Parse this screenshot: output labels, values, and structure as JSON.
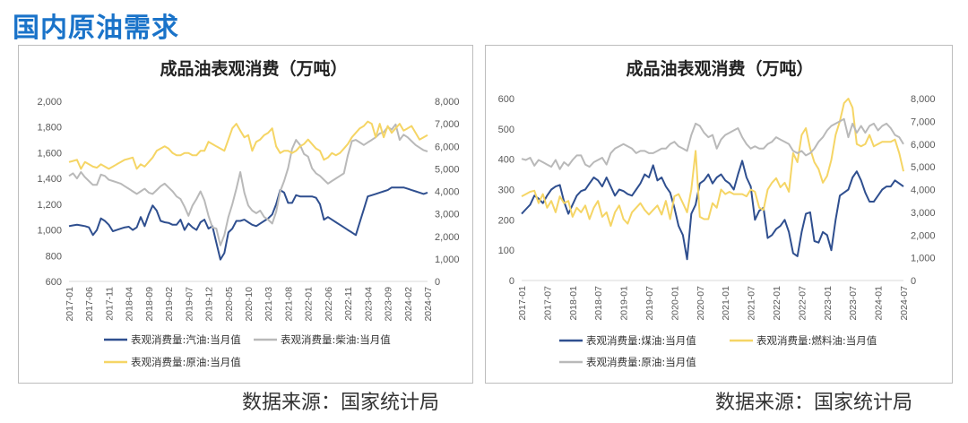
{
  "header": {
    "title": "国内原油需求"
  },
  "footer": {
    "left_source": "数据来源：国家统计局",
    "right_source": "数据来源：国家统计局"
  },
  "colors": {
    "blue": "#2f4f8f",
    "grey": "#b9b9b9",
    "yellow": "#f5d565",
    "axis": "#d9d9d9",
    "text": "#595959"
  },
  "chart_data": [
    {
      "type": "line",
      "title": "成品油表观消费（万吨）",
      "x": [
        "2017-01",
        "2017-02",
        "2017-03",
        "2017-04",
        "2017-05",
        "2017-06",
        "2017-07",
        "2017-08",
        "2017-09",
        "2017-10",
        "2017-11",
        "2017-12",
        "2018-01",
        "2018-02",
        "2018-03",
        "2018-04",
        "2018-05",
        "2018-06",
        "2018-07",
        "2018-08",
        "2018-09",
        "2018-10",
        "2018-11",
        "2018-12",
        "2019-01",
        "2019-02",
        "2019-03",
        "2019-04",
        "2019-05",
        "2019-06",
        "2019-07",
        "2019-08",
        "2019-09",
        "2019-10",
        "2019-11",
        "2019-12",
        "2020-01",
        "2020-02",
        "2020-03",
        "2020-04",
        "2020-05",
        "2020-06",
        "2020-07",
        "2020-08",
        "2020-09",
        "2020-10",
        "2020-11",
        "2020-12",
        "2021-01",
        "2021-02",
        "2021-03",
        "2021-04",
        "2021-05",
        "2021-06",
        "2021-07",
        "2021-08",
        "2021-09",
        "2021-10",
        "2021-11",
        "2021-12",
        "2022-01",
        "2022-02",
        "2022-03",
        "2022-04",
        "2022-05",
        "2022-06",
        "2022-07",
        "2022-08",
        "2022-09",
        "2022-10",
        "2022-11",
        "2022-12",
        "2023-01",
        "2023-02",
        "2023-03",
        "2023-04",
        "2023-05",
        "2023-06",
        "2023-07",
        "2023-08",
        "2023-09",
        "2023-10",
        "2023-11",
        "2023-12",
        "2024-01",
        "2024-02",
        "2024-03",
        "2024-04",
        "2024-05",
        "2024-06",
        "2024-07"
      ],
      "x_tick_labels": [
        "2017-01",
        "2017-06",
        "2017-11",
        "2018-04",
        "2018-09",
        "2019-02",
        "2019-07",
        "2019-12",
        "2020-05",
        "2020-10",
        "2021-03",
        "2021-08",
        "2022-01",
        "2022-06",
        "2022-11",
        "2023-04",
        "2023-09",
        "2024-02",
        "2024-07"
      ],
      "y_left": {
        "min": 600,
        "max": 2000,
        "ticks": [
          "600",
          "800",
          "1,000",
          "1,200",
          "1,400",
          "1,600",
          "1,800",
          "2,000"
        ]
      },
      "y_right": {
        "min": 0,
        "max": 8000,
        "ticks": [
          "0",
          "1,000",
          "2,000",
          "3,000",
          "4,000",
          "5,000",
          "6,000",
          "7,000",
          "8,000"
        ]
      },
      "series": [
        {
          "name": "表观消费量:汽油:当月值",
          "color": "#2f4f8f",
          "axis": "left",
          "values": [
            1030,
            1035,
            1040,
            1035,
            1030,
            1020,
            960,
            1000,
            1090,
            1070,
            1040,
            990,
            1000,
            1010,
            1020,
            1025,
            1000,
            1020,
            1100,
            1030,
            1120,
            1190,
            1150,
            1070,
            1060,
            1055,
            1040,
            1040,
            1080,
            1000,
            1050,
            1020,
            1000,
            1060,
            1080,
            1010,
            1030,
            900,
            770,
            820,
            980,
            1010,
            1070,
            1070,
            1080,
            1060,
            1040,
            1030,
            1050,
            1070,
            1090,
            1120,
            1200,
            1310,
            1290,
            1210,
            1210,
            1270,
            1260,
            1260,
            1260,
            1260,
            1250,
            1200,
            1080,
            1100,
            1080,
            1060,
            1040,
            1020,
            1000,
            980,
            960,
            1060,
            1160,
            1260,
            1270,
            1280,
            1290,
            1300,
            1310,
            1330,
            1330,
            1330,
            1330,
            1320,
            1310,
            1300,
            1290,
            1280,
            1290
          ]
        },
        {
          "name": "表观消费量:柴油:当月值",
          "color": "#b9b9b9",
          "axis": "left",
          "values": [
            1420,
            1440,
            1400,
            1450,
            1410,
            1380,
            1350,
            1350,
            1430,
            1420,
            1390,
            1380,
            1370,
            1360,
            1340,
            1320,
            1300,
            1280,
            1300,
            1320,
            1290,
            1280,
            1310,
            1340,
            1360,
            1330,
            1300,
            1260,
            1240,
            1180,
            1110,
            1190,
            1240,
            1300,
            1230,
            1110,
            1020,
            1010,
            880,
            960,
            1100,
            1200,
            1320,
            1450,
            1290,
            1190,
            1150,
            1130,
            1150,
            1100,
            1080,
            1050,
            1140,
            1300,
            1380,
            1480,
            1630,
            1700,
            1660,
            1590,
            1570,
            1480,
            1440,
            1420,
            1390,
            1360,
            1380,
            1400,
            1420,
            1440,
            1580,
            1690,
            1700,
            1680,
            1660,
            1680,
            1700,
            1720,
            1750,
            1760,
            1800,
            1780,
            1820,
            1700,
            1740,
            1720,
            1690,
            1660,
            1640,
            1620,
            1610
          ]
        },
        {
          "name": "表观消费量:原油:当月值",
          "color": "#f5d565",
          "axis": "right",
          "values": [
            5300,
            5350,
            5400,
            5000,
            5300,
            5200,
            5100,
            5050,
            5200,
            5100,
            5000,
            5100,
            5200,
            5300,
            5400,
            5450,
            5500,
            5000,
            5200,
            5100,
            5300,
            5500,
            5800,
            5900,
            6000,
            5900,
            5700,
            5600,
            5600,
            5700,
            5700,
            5600,
            5600,
            5800,
            5800,
            6200,
            6100,
            6000,
            5900,
            5800,
            6300,
            6800,
            7000,
            6700,
            6400,
            6500,
            5800,
            6200,
            6300,
            6500,
            6600,
            6800,
            6000,
            5700,
            5800,
            5800,
            5700,
            5800,
            6000,
            6100,
            6300,
            6100,
            5900,
            5800,
            5400,
            5500,
            5700,
            5600,
            5700,
            5900,
            6100,
            6400,
            6600,
            6800,
            6900,
            7100,
            7000,
            6400,
            7000,
            6400,
            6900,
            6600,
            6800,
            7000,
            6700,
            6800,
            6900,
            6600,
            6300,
            6400,
            6500
          ]
        }
      ]
    },
    {
      "type": "line",
      "title": "成品油表观消费（万吨）",
      "x": [
        "2017-01",
        "2017-02",
        "2017-03",
        "2017-04",
        "2017-05",
        "2017-06",
        "2017-07",
        "2017-08",
        "2017-09",
        "2017-10",
        "2017-11",
        "2017-12",
        "2018-01",
        "2018-02",
        "2018-03",
        "2018-04",
        "2018-05",
        "2018-06",
        "2018-07",
        "2018-08",
        "2018-09",
        "2018-10",
        "2018-11",
        "2018-12",
        "2019-01",
        "2019-02",
        "2019-03",
        "2019-04",
        "2019-05",
        "2019-06",
        "2019-07",
        "2019-08",
        "2019-09",
        "2019-10",
        "2019-11",
        "2019-12",
        "2020-01",
        "2020-02",
        "2020-03",
        "2020-04",
        "2020-05",
        "2020-06",
        "2020-07",
        "2020-08",
        "2020-09",
        "2020-10",
        "2020-11",
        "2020-12",
        "2021-01",
        "2021-02",
        "2021-03",
        "2021-04",
        "2021-05",
        "2021-06",
        "2021-07",
        "2021-08",
        "2021-09",
        "2021-10",
        "2021-11",
        "2021-12",
        "2022-01",
        "2022-02",
        "2022-03",
        "2022-04",
        "2022-05",
        "2022-06",
        "2022-07",
        "2022-08",
        "2022-09",
        "2022-10",
        "2022-11",
        "2022-12",
        "2023-01",
        "2023-02",
        "2023-03",
        "2023-04",
        "2023-05",
        "2023-06",
        "2023-07",
        "2023-08",
        "2023-09",
        "2023-10",
        "2023-11",
        "2023-12",
        "2024-01",
        "2024-02",
        "2024-03",
        "2024-04",
        "2024-05",
        "2024-06",
        "2024-07"
      ],
      "x_tick_labels": [
        "2017-01",
        "2017-07",
        "2018-01",
        "2018-07",
        "2019-01",
        "2019-07",
        "2020-01",
        "2020-07",
        "2021-01",
        "2021-07",
        "2022-01",
        "2022-07",
        "2023-01",
        "2023-07",
        "2024-01",
        "2024-07"
      ],
      "y_left": {
        "min": 0,
        "max": 600,
        "ticks": [
          "0",
          "100",
          "200",
          "300",
          "400",
          "500",
          "600"
        ]
      },
      "y_right": {
        "min": 0,
        "max": 8000,
        "ticks": [
          "0",
          "1,000",
          "2,000",
          "3,000",
          "4,000",
          "5,000",
          "6,000",
          "7,000",
          "8,000"
        ]
      },
      "series": [
        {
          "name": "表观消费量:煤油:当月值",
          "color": "#2f4f8f",
          "axis": "left",
          "values": [
            220,
            235,
            250,
            280,
            270,
            255,
            280,
            300,
            310,
            315,
            260,
            220,
            250,
            280,
            295,
            300,
            320,
            340,
            330,
            310,
            340,
            310,
            280,
            300,
            295,
            285,
            280,
            300,
            320,
            350,
            340,
            380,
            330,
            340,
            310,
            290,
            240,
            180,
            150,
            70,
            220,
            250,
            320,
            330,
            350,
            320,
            340,
            350,
            330,
            320,
            300,
            350,
            395,
            340,
            310,
            200,
            230,
            240,
            140,
            150,
            170,
            180,
            200,
            160,
            90,
            80,
            160,
            220,
            225,
            130,
            125,
            160,
            150,
            100,
            200,
            280,
            290,
            300,
            340,
            360,
            330,
            290,
            260,
            260,
            280,
            300,
            310,
            310,
            330,
            320,
            310
          ]
        },
        {
          "name": "表观消费量:燃料油:当月值",
          "color": "#f5d565",
          "axis": "right",
          "values": [
            3700,
            3800,
            3900,
            3950,
            3400,
            3800,
            3200,
            3500,
            3000,
            3700,
            3400,
            3500,
            2800,
            3200,
            3000,
            3300,
            2700,
            3200,
            3500,
            2800,
            3000,
            2400,
            3000,
            3300,
            2700,
            2500,
            3000,
            3200,
            3400,
            3100,
            2900,
            3100,
            3300,
            2900,
            3500,
            2700,
            3700,
            3800,
            3400,
            3000,
            4000,
            5700,
            2800,
            2700,
            2700,
            3400,
            3200,
            4000,
            3800,
            3900,
            3800,
            3800,
            3800,
            3700,
            4000,
            3900,
            3200,
            3100,
            4000,
            4300,
            4500,
            4100,
            4300,
            3900,
            5600,
            5200,
            6400,
            6700,
            5800,
            5200,
            4900,
            4300,
            4600,
            5300,
            6400,
            7000,
            7800,
            8000,
            7600,
            6000,
            5900,
            6000,
            6400,
            5900,
            6000,
            6100,
            6100,
            6100,
            6200,
            5600,
            4800
          ]
        },
        {
          "name": "表观消费量:原油:当月值",
          "color": "#b9b9b9",
          "axis": "right",
          "values": [
            5350,
            5300,
            5400,
            5050,
            5300,
            5200,
            5100,
            5000,
            5300,
            4900,
            5200,
            5050,
            5300,
            5500,
            5500,
            5100,
            5000,
            5200,
            5300,
            5400,
            5100,
            5600,
            5800,
            5900,
            6000,
            5900,
            5800,
            5600,
            5700,
            5700,
            5600,
            5600,
            5700,
            5800,
            5800,
            6000,
            6100,
            5900,
            5800,
            5700,
            6400,
            6900,
            6800,
            6500,
            6300,
            6400,
            5800,
            6200,
            6400,
            6500,
            6600,
            6700,
            6300,
            6000,
            5800,
            5900,
            5800,
            5800,
            6000,
            6100,
            6300,
            6200,
            6100,
            6000,
            5700,
            5600,
            5700,
            5500,
            5600,
            5800,
            6100,
            6300,
            6600,
            6800,
            6900,
            7000,
            7100,
            6300,
            6900,
            6500,
            6800,
            6500,
            6800,
            6900,
            6600,
            6800,
            6900,
            6700,
            6400,
            6300,
            6000
          ]
        }
      ]
    }
  ]
}
